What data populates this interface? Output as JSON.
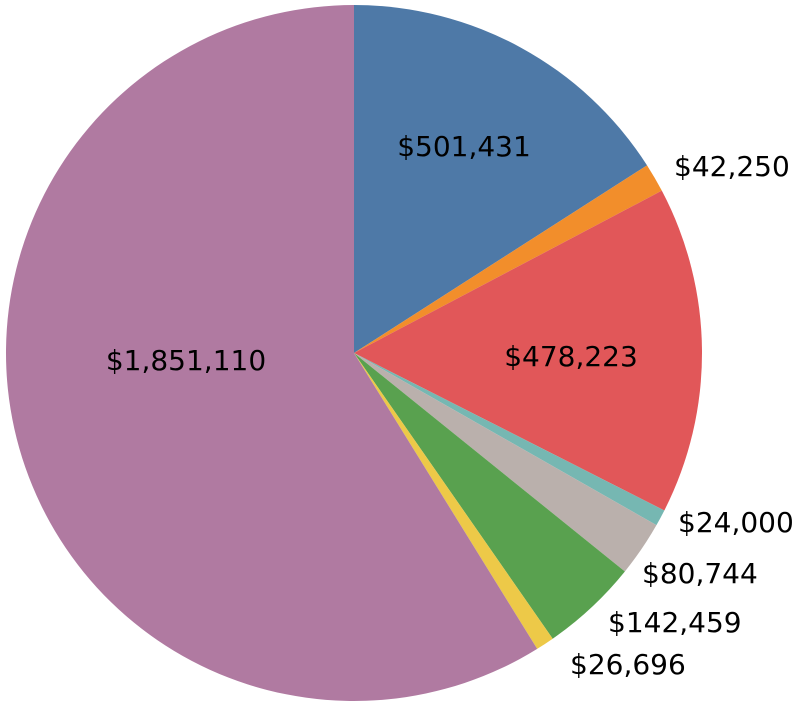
{
  "chart_data": {
    "type": "pie",
    "title": "",
    "start_angle_deg": 0,
    "direction": "clockwise",
    "legend": "none",
    "slices": [
      {
        "value": 501431,
        "label": "$501,431",
        "color": "#4e79a7",
        "label_placement": "inside"
      },
      {
        "value": 42250,
        "label": "$42,250",
        "color": "#f28e2b",
        "label_placement": "outside"
      },
      {
        "value": 478223,
        "label": "$478,223",
        "color": "#e15759",
        "label_placement": "inside"
      },
      {
        "value": 24000,
        "label": "$24,000",
        "color": "#76b7b2",
        "label_placement": "outside"
      },
      {
        "value": 80744,
        "label": "$80,744",
        "color": "#bab0ac",
        "label_placement": "outside"
      },
      {
        "value": 142459,
        "label": "$142,459",
        "color": "#59a14f",
        "label_placement": "outside"
      },
      {
        "value": 26696,
        "label": "$26,696",
        "color": "#edc948",
        "label_placement": "outside"
      },
      {
        "value": 1851110,
        "label": "$1,851,110",
        "color": "#b07aa1",
        "label_placement": "inside"
      }
    ]
  }
}
